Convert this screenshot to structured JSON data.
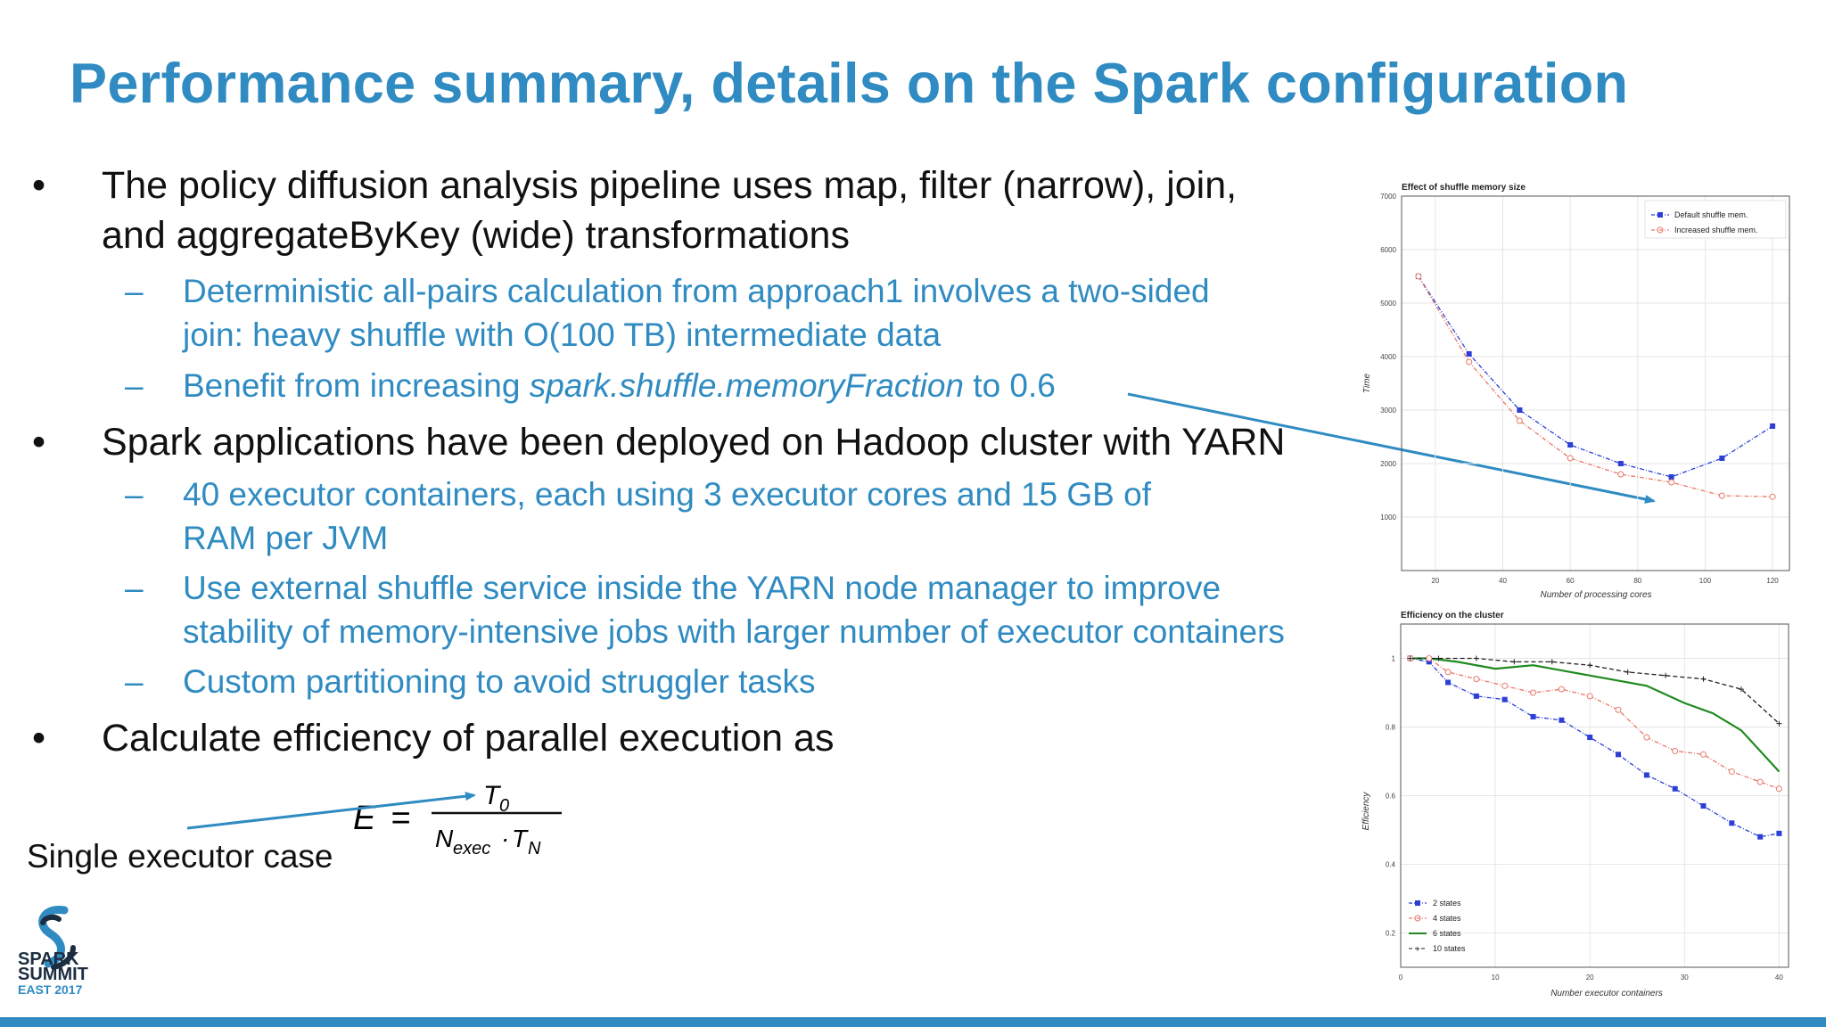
{
  "slide": {
    "title": "Performance summary, details on the Spark configuration",
    "bullet_marker": "•",
    "dash_marker": "–",
    "bullets": [
      {
        "lines": [
          "The policy diffusion analysis pipeline uses map, filter (narrow), join,",
          "and aggregateByKey (wide) transformations"
        ]
      },
      {
        "lines": [
          "Deterministic all-pairs calculation from approach1 involves a two-sided",
          "join: heavy shuffle with O(100 TB) intermediate data"
        ]
      },
      {
        "prefix": "Benefit from increasing ",
        "italic": "spark.shuffle.memoryFraction",
        "suffix": " to 0.6"
      },
      {
        "lines": [
          "Spark applications have been deployed on Hadoop cluster with YARN"
        ]
      },
      {
        "lines": [
          "40 executor containers, each using 3 executor cores and 15 GB of",
          "RAM per JVM"
        ]
      },
      {
        "lines": [
          "Use external shuffle service inside the YARN node manager to improve",
          "stability of memory-intensive jobs with larger number of executor containers"
        ]
      },
      {
        "lines": [
          "Custom partitioning to avoid struggler tasks"
        ]
      },
      {
        "lines": [
          "Calculate efficiency of parallel execution as"
        ]
      }
    ],
    "equation": {
      "lhs": "E",
      "eq": "=",
      "num": "T",
      "num_sub": "0",
      "den_a": "N",
      "den_a_sub": "exec",
      "den_dot": "·",
      "den_b": "T",
      "den_b_sub": "N"
    },
    "single_executor_label": "Single executor case",
    "logo": {
      "line1": "SPARK",
      "line2": "SUMMIT",
      "line3": "EAST 2017"
    },
    "colors": {
      "title": "#2f8bc1",
      "sub_bullet": "#2f8bc1",
      "arrow": "#2f8bc1",
      "footer": "#2f8bc1"
    }
  },
  "chart_data": [
    {
      "type": "line",
      "title": "Effect of shuffle memory size",
      "xlabel": "Number of processing cores",
      "ylabel": "Time",
      "xlim": [
        10,
        125
      ],
      "ylim": [
        0,
        7000
      ],
      "xticks": [
        20,
        40,
        60,
        80,
        100,
        120
      ],
      "yticks": [
        1000,
        2000,
        3000,
        4000,
        5000,
        6000,
        7000
      ],
      "grid": true,
      "legend_position": "top-right",
      "x": [
        15,
        30,
        45,
        60,
        75,
        90,
        105,
        120
      ],
      "series": [
        {
          "name": "Default shuffle mem.",
          "color": "#2b3fd6",
          "marker": "square",
          "values": [
            5500,
            4050,
            3000,
            2350,
            2000,
            1750,
            2100,
            2700
          ]
        },
        {
          "name": "Increased shuffle mem.",
          "color": "#e8786a",
          "marker": "circle",
          "values": [
            5500,
            3900,
            2800,
            2100,
            1800,
            1650,
            1400,
            1380
          ]
        }
      ]
    },
    {
      "type": "line",
      "title": "Efficiency on the cluster",
      "xlabel": "Number executor containers",
      "ylabel": "Efficiency",
      "xlim": [
        0,
        41
      ],
      "ylim": [
        0.1,
        1.1
      ],
      "xticks": [
        0,
        10,
        20,
        30,
        40
      ],
      "yticks": [
        0.2,
        0.4,
        0.6,
        0.8,
        1
      ],
      "grid": true,
      "legend_position": "bottom-left",
      "series": [
        {
          "name": "2 states",
          "color": "#2b3fd6",
          "style": "dashdot",
          "marker": "square",
          "x": [
            1,
            3,
            5,
            8,
            11,
            14,
            17,
            20,
            23,
            26,
            29,
            32,
            35,
            38,
            40
          ],
          "values": [
            1.0,
            0.99,
            0.93,
            0.89,
            0.88,
            0.83,
            0.82,
            0.77,
            0.72,
            0.66,
            0.62,
            0.57,
            0.52,
            0.48,
            0.49
          ]
        },
        {
          "name": "4 states",
          "color": "#e8786a",
          "style": "dashdot",
          "marker": "circle",
          "x": [
            1,
            3,
            5,
            8,
            11,
            14,
            17,
            20,
            23,
            26,
            29,
            32,
            35,
            38,
            40
          ],
          "values": [
            1.0,
            1.0,
            0.96,
            0.94,
            0.92,
            0.9,
            0.91,
            0.89,
            0.85,
            0.77,
            0.73,
            0.72,
            0.67,
            0.64,
            0.62
          ]
        },
        {
          "name": "6 states",
          "color": "#1e8a1e",
          "style": "solid",
          "marker": "none",
          "x": [
            1,
            3,
            6,
            10,
            14,
            18,
            22,
            26,
            30,
            33,
            36,
            40
          ],
          "values": [
            1.0,
            1.0,
            0.99,
            0.97,
            0.98,
            0.96,
            0.94,
            0.92,
            0.87,
            0.84,
            0.79,
            0.67
          ]
        },
        {
          "name": "10 states",
          "color": "#222222",
          "style": "dashed",
          "marker": "plus",
          "x": [
            1,
            4,
            8,
            12,
            16,
            20,
            24,
            28,
            32,
            36,
            40
          ],
          "values": [
            1.0,
            1.0,
            1.0,
            0.99,
            0.99,
            0.98,
            0.96,
            0.95,
            0.94,
            0.91,
            0.81
          ]
        }
      ]
    }
  ]
}
